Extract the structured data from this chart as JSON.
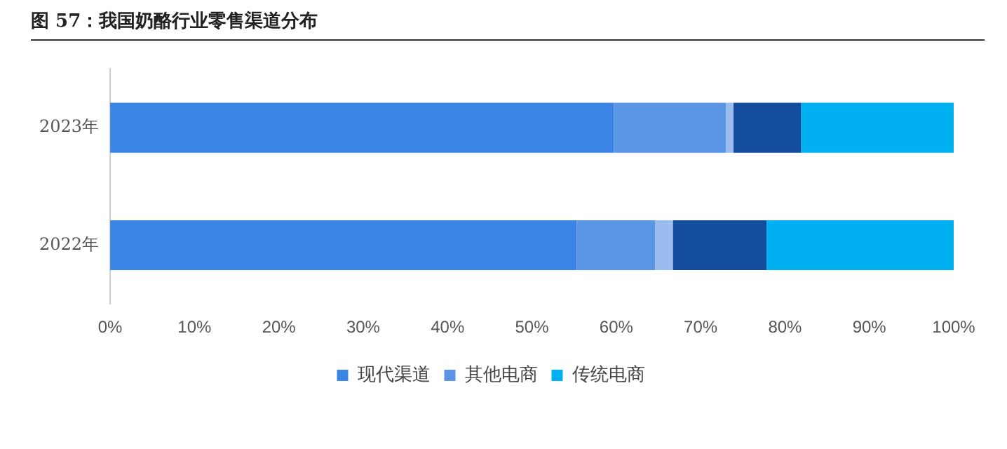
{
  "chart_data": {
    "type": "bar",
    "orientation": "horizontal",
    "stacked": true,
    "title": "图 57：我国奶酪行业零售渠道分布",
    "categories": [
      "2023年",
      "2022年"
    ],
    "series": [
      {
        "name": "现代渠道",
        "color": "#3a84e6",
        "values": [
          59.7,
          55.3
        ]
      },
      {
        "name": "其他电商",
        "color": "#5b96e6",
        "values": [
          13.3,
          9.3
        ]
      },
      {
        "color": "#9bbcee",
        "values": [
          0.9,
          2.1
        ]
      },
      {
        "color": "#144c9e",
        "values": [
          8.0,
          11.1
        ]
      },
      {
        "name": "传统电商",
        "color": "#00b0f0",
        "values": [
          18.1,
          22.2
        ]
      }
    ],
    "xlim": [
      0,
      100
    ],
    "xticks": [
      {
        "value": 0,
        "label": "0%"
      },
      {
        "value": 10,
        "label": "10%"
      },
      {
        "value": 20,
        "label": "20%"
      },
      {
        "value": 30,
        "label": "30%"
      },
      {
        "value": 40,
        "label": "40%"
      },
      {
        "value": 50,
        "label": "50%"
      },
      {
        "value": 60,
        "label": "60%"
      },
      {
        "value": 70,
        "label": "70%"
      },
      {
        "value": 80,
        "label": "80%"
      },
      {
        "value": 90,
        "label": "90%"
      },
      {
        "value": 100,
        "label": "100%"
      }
    ],
    "grid": false,
    "legend": "bottom"
  }
}
